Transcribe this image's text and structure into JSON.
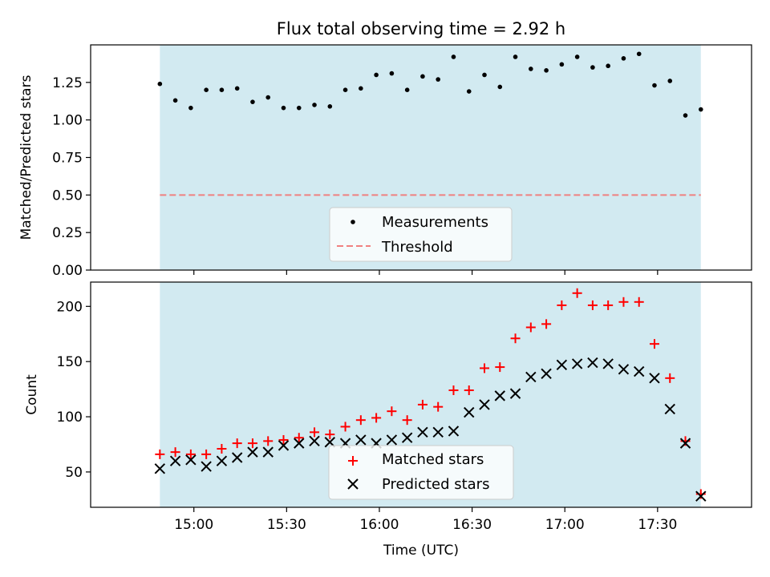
{
  "title": "Flux total observing time = 2.92 h",
  "colors": {
    "span": "#add8e6",
    "threshold": "#f08080",
    "matched": "#ff0000",
    "predicted": "#000000",
    "measurement": "#000000"
  },
  "chart_data": [
    {
      "type": "scatter",
      "ylabel": "Matched/Predicted stars",
      "ylim": [
        0,
        1.5
      ],
      "yticks": [
        "0.00",
        "0.25",
        "0.50",
        "0.75",
        "1.00",
        "1.25"
      ],
      "observing_span": [
        "14:49",
        "17:44"
      ],
      "legend_position": "lower-center",
      "series": [
        {
          "name": "Measurements",
          "x": [
            "14:49",
            "14:54",
            "14:59",
            "15:04",
            "15:09",
            "15:14",
            "15:19",
            "15:24",
            "15:29",
            "15:34",
            "15:39",
            "15:44",
            "15:49",
            "15:54",
            "15:59",
            "16:04",
            "16:09",
            "16:14",
            "16:19",
            "16:24",
            "16:29",
            "16:34",
            "16:39",
            "16:44",
            "16:49",
            "16:54",
            "16:59",
            "17:04",
            "17:09",
            "17:14",
            "17:19",
            "17:24",
            "17:29",
            "17:34",
            "17:39",
            "17:44"
          ],
          "y": [
            1.24,
            1.13,
            1.08,
            1.2,
            1.2,
            1.21,
            1.12,
            1.15,
            1.08,
            1.08,
            1.1,
            1.09,
            1.2,
            1.21,
            1.3,
            1.31,
            1.2,
            1.29,
            1.27,
            1.42,
            1.19,
            1.3,
            1.22,
            1.42,
            1.34,
            1.33,
            1.37,
            1.42,
            1.35,
            1.36,
            1.41,
            1.44,
            1.23,
            1.26,
            1.03,
            1.07
          ]
        },
        {
          "name": "Threshold",
          "y_constant": 0.5
        }
      ]
    },
    {
      "type": "scatter",
      "xlabel": "Time (UTC)",
      "ylabel": "Count",
      "ylim": [
        18,
        222
      ],
      "yticks": [
        "50",
        "100",
        "150",
        "200"
      ],
      "xticks": [
        "15:00",
        "15:30",
        "16:00",
        "16:30",
        "17:00",
        "17:30"
      ],
      "observing_span": [
        "14:49",
        "17:44"
      ],
      "legend_position": "lower-center",
      "series": [
        {
          "name": "Matched stars",
          "x": [
            "14:49",
            "14:54",
            "14:59",
            "15:04",
            "15:09",
            "15:14",
            "15:19",
            "15:24",
            "15:29",
            "15:34",
            "15:39",
            "15:44",
            "15:49",
            "15:54",
            "15:59",
            "16:04",
            "16:09",
            "16:14",
            "16:19",
            "16:24",
            "16:29",
            "16:34",
            "16:39",
            "16:44",
            "16:49",
            "16:54",
            "16:59",
            "17:04",
            "17:09",
            "17:14",
            "17:19",
            "17:24",
            "17:29",
            "17:34",
            "17:39",
            "17:44"
          ],
          "y": [
            66,
            68,
            66,
            66,
            71,
            76,
            76,
            78,
            79,
            81,
            86,
            84,
            91,
            97,
            99,
            105,
            97,
            111,
            109,
            124,
            124,
            144,
            145,
            171,
            181,
            184,
            201,
            212,
            201,
            201,
            204,
            204,
            166,
            135,
            78,
            30
          ]
        },
        {
          "name": "Predicted stars",
          "x": [
            "14:49",
            "14:54",
            "14:59",
            "15:04",
            "15:09",
            "15:14",
            "15:19",
            "15:24",
            "15:29",
            "15:34",
            "15:39",
            "15:44",
            "15:49",
            "15:54",
            "15:59",
            "16:04",
            "16:09",
            "16:14",
            "16:19",
            "16:24",
            "16:29",
            "16:34",
            "16:39",
            "16:44",
            "16:49",
            "16:54",
            "16:59",
            "17:04",
            "17:09",
            "17:14",
            "17:19",
            "17:24",
            "17:29",
            "17:34",
            "17:39",
            "17:44"
          ],
          "y": [
            53,
            60,
            61,
            55,
            60,
            63,
            68,
            68,
            74,
            76,
            78,
            77,
            76,
            79,
            76,
            79,
            81,
            86,
            86,
            87,
            104,
            111,
            119,
            121,
            136,
            139,
            147,
            148,
            149,
            148,
            143,
            141,
            135,
            107,
            76,
            28
          ]
        }
      ]
    }
  ]
}
